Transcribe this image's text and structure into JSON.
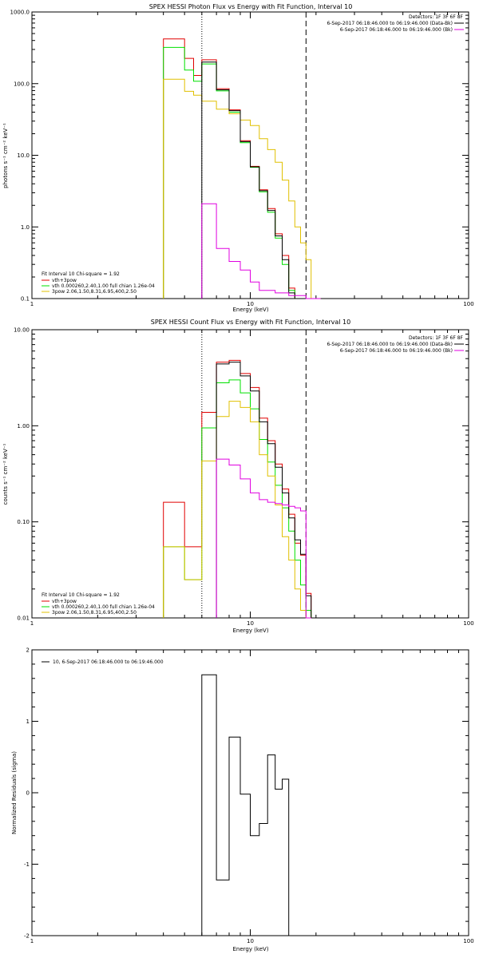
{
  "chart_data": [
    {
      "type": "line",
      "title": "SPEX HESSI Photon Flux vs Energy with Fit Function, Interval 10",
      "xlabel": "Energy (keV)",
      "ylabel": "photons s⁻¹ cm⁻² keV⁻¹",
      "xscale": "log",
      "yscale": "log",
      "xlim": [
        1,
        100
      ],
      "ylim": [
        0.1,
        1000
      ],
      "xticks": [
        "1",
        "10",
        "100"
      ],
      "yticks": [
        "0.1",
        "1.0",
        "10.0",
        "100.0",
        "1000.0"
      ],
      "vlines": [
        {
          "x": 6,
          "style": "dotted"
        },
        {
          "x": 18,
          "style": "dashed"
        }
      ],
      "legend_top_right": [
        "Detectors: 1F 3F 6F 8F",
        "6-Sep-2017 06:18:46.000 to 06:19:46.000 (Data-Bk)",
        "6-Sep-2017 06:18:46.000 to 06:19:46.000 (Bk)"
      ],
      "legend_bottom_left": [
        "Fit Interval 10   Chi-square = 1.92",
        "vth+3pow",
        "vth 0.000260,2.40,1.00  full chian 1.26e-04",
        "3pow 2.06,1.50,8.31,6.95,400,2.50"
      ],
      "edges": [
        4,
        5,
        5.5,
        6,
        7,
        8,
        9,
        10,
        11,
        12,
        13,
        14,
        15,
        16,
        17,
        18,
        19,
        21
      ],
      "series": [
        {
          "name": "vth+3pow",
          "color": "#e00000",
          "values": [
            420,
            225,
            130,
            215,
            85,
            43,
            16,
            7,
            3.3,
            1.8,
            0.8,
            0.4,
            0.14
          ]
        },
        {
          "name": "vth 0.000260,2.40,1.00  full chian 1.26e-04",
          "color": "#00e000",
          "values": [
            320,
            155,
            108,
            188,
            79,
            40,
            15,
            6.8,
            3.1,
            1.6,
            0.7,
            0.3,
            0.13
          ]
        },
        {
          "name": "3pow 2.06,1.50,8.31,6.95,400,2.50",
          "color": "#e0c000",
          "values": [
            115,
            78,
            69,
            57,
            44,
            38,
            31,
            26,
            17,
            12,
            8,
            4.5,
            2.3,
            1,
            0.6,
            0.35,
            0.1
          ]
        },
        {
          "name": "Data-Bk",
          "color": "#000000",
          "values": [
            null,
            null,
            null,
            200,
            82,
            42,
            15.5,
            6.9,
            3.2,
            1.7,
            0.75,
            0.35,
            0.12
          ]
        },
        {
          "name": "Bk",
          "color": "#e000e0",
          "values": [
            null,
            null,
            null,
            2.1,
            0.5,
            0.33,
            0.25,
            0.17,
            0.13,
            0.13,
            0.12,
            0.12,
            0.11,
            0.11,
            0.11,
            0.1,
            0.1
          ]
        }
      ]
    },
    {
      "type": "line",
      "title": "SPEX HESSI Count Flux vs Energy with Fit Function, Interval 10",
      "xlabel": "Energy (keV)",
      "ylabel": "counts s⁻¹ cm⁻² keV⁻¹",
      "xscale": "log",
      "yscale": "log",
      "xlim": [
        1,
        100
      ],
      "ylim": [
        0.01,
        10
      ],
      "xticks": [
        "1",
        "10",
        "100"
      ],
      "yticks": [
        "0.01",
        "0.10",
        "1.00",
        "10.00"
      ],
      "vlines": [
        {
          "x": 6,
          "style": "dotted"
        },
        {
          "x": 18,
          "style": "dashed"
        }
      ],
      "legend_top_right": [
        "Detectors: 1F 3F 6F 8F",
        "6-Sep-2017 06:18:46.000 to 06:19:46.000 (Data-Bk)",
        "6-Sep-2017 06:18:46.000 to 06:19:46.000 (Bk)"
      ],
      "legend_bottom_left": [
        "Fit Interval 10   Chi-square = 1.92",
        "vth+3pow",
        "vth 0.000260,2.40,1.00  full chian 1.26e-04",
        "3pow 2.06,1.50,8.31,6.95,400,2.50"
      ],
      "edges": [
        4,
        5,
        6,
        7,
        8,
        9,
        10,
        11,
        12,
        13,
        14,
        15,
        16,
        17,
        18,
        19,
        21
      ],
      "series": [
        {
          "name": "vth+3pow",
          "color": "#e00000",
          "values": [
            0.16,
            0.055,
            1.38,
            4.6,
            4.8,
            3.5,
            2.5,
            1.2,
            0.7,
            0.4,
            0.22,
            0.12,
            0.06,
            0.045,
            0.018
          ]
        },
        {
          "name": "vth 0.000260,2.40,1.00  full chian 1.26e-04",
          "color": "#00e000",
          "values": [
            0.055,
            0.025,
            0.95,
            2.8,
            3,
            2.2,
            1.5,
            0.72,
            0.42,
            0.24,
            0.14,
            0.08,
            0.04,
            0.022,
            0.012
          ]
        },
        {
          "name": "3pow 2.06,1.50,8.31,6.95,400,2.50",
          "color": "#e0c000",
          "values": [
            0.055,
            0.025,
            0.43,
            1.25,
            1.8,
            1.55,
            1.1,
            0.5,
            0.3,
            0.15,
            0.07,
            0.04,
            0.02,
            0.012,
            0.01
          ]
        },
        {
          "name": "Data-Bk",
          "color": "#000000",
          "values": [
            null,
            null,
            null,
            4.4,
            4.6,
            3.3,
            2.3,
            1.1,
            0.65,
            0.37,
            0.2,
            0.11,
            0.065,
            0.046,
            0.017
          ]
        },
        {
          "name": "Bk",
          "color": "#e000e0",
          "values": [
            null,
            null,
            null,
            0.45,
            0.39,
            0.28,
            0.2,
            0.17,
            0.16,
            0.155,
            0.15,
            0.145,
            0.14,
            0.13,
            0.01
          ]
        }
      ]
    },
    {
      "type": "line",
      "title": "",
      "xlabel": "Energy (keV)",
      "ylabel": "Normalized Residuals (sigma)",
      "xscale": "log",
      "yscale": "linear",
      "xlim": [
        1,
        100
      ],
      "ylim": [
        -2,
        2
      ],
      "xticks": [
        "1",
        "10",
        "100"
      ],
      "yticks": [
        "-2",
        "-1",
        "0",
        "1",
        "2"
      ],
      "legend": "10,  6-Sep-2017 06:18:46.000 to 06:19:46.000",
      "edges": [
        6,
        7,
        8,
        9,
        10,
        11,
        12,
        13,
        14,
        15,
        16,
        18
      ],
      "series": [
        {
          "name": "10,  6-Sep-2017 06:18:46.000 to 06:19:46.000",
          "color": "#000000",
          "values": [
            1.65,
            -1.22,
            0.78,
            -0.02,
            -0.6,
            -0.43,
            0.53,
            0.05,
            0.19
          ]
        }
      ]
    }
  ]
}
